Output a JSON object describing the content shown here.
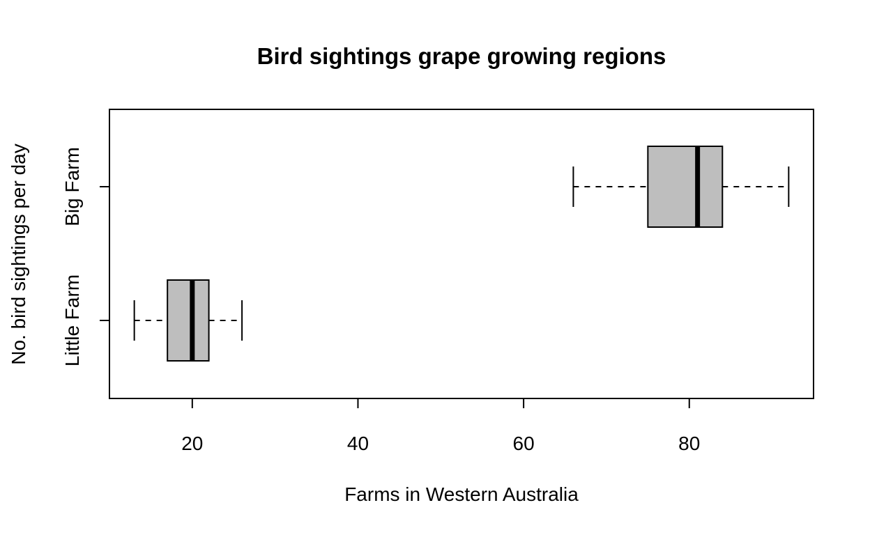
{
  "chart_data": {
    "type": "boxplot",
    "orientation": "horizontal",
    "title": "Bird sightings grape growing regions",
    "xlabel": "Farms in Western Australia",
    "ylabel": "No. bird sightings per day",
    "xlim": [
      10,
      95
    ],
    "xticks": [
      20,
      40,
      60,
      80
    ],
    "grid": false,
    "box_color": "#bebebe",
    "categories": [
      "Little Farm",
      "Big Farm"
    ],
    "boxes": [
      {
        "name": "Little Farm",
        "min": 13,
        "q1": 17,
        "median": 20,
        "q3": 22,
        "max": 26
      },
      {
        "name": "Big Farm",
        "min": 66,
        "q1": 75,
        "median": 81,
        "q3": 84,
        "max": 92
      }
    ]
  }
}
